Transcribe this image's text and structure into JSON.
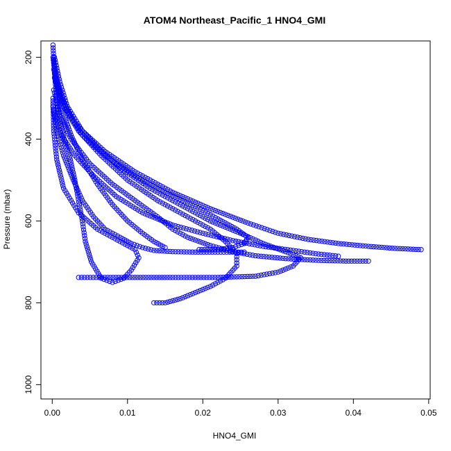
{
  "chart_data": {
    "type": "scatter",
    "title": "ATOM4 Northeast_Pacific_1 HNO4_GMI",
    "xlabel": "HNO4_GMI",
    "ylabel": "Pressure (mbar)",
    "xlim": [
      -0.0015,
      0.0502
    ],
    "ylim": [
      1035,
      160
    ],
    "y_reversed": true,
    "x_ticks": [
      "0.00",
      "0.01",
      "0.02",
      "0.03",
      "0.04",
      "0.05"
    ],
    "x_tick_values": [
      0.0,
      0.01,
      0.02,
      0.03,
      0.04,
      0.05
    ],
    "y_ticks": [
      "200",
      "400",
      "600",
      "800",
      "1000"
    ],
    "y_tick_values": [
      200,
      400,
      600,
      800,
      1000
    ],
    "grid": false,
    "legend": "none",
    "marker": "open-circle",
    "color": "#0000ff",
    "series": [
      {
        "values": [
          [
            0.0001,
            170
          ],
          [
            0.0003,
            240
          ],
          [
            0.0006,
            300
          ],
          [
            0.001,
            350
          ],
          [
            0.0016,
            400
          ],
          [
            0.0024,
            450
          ],
          [
            0.003,
            500
          ],
          [
            0.0036,
            560
          ],
          [
            0.004,
            600
          ],
          [
            0.0044,
            650
          ],
          [
            0.0052,
            700
          ],
          [
            0.0065,
            740
          ],
          [
            0.008,
            750
          ],
          [
            0.0095,
            740
          ],
          [
            0.0105,
            720
          ],
          [
            0.0115,
            690
          ],
          [
            0.011,
            670
          ],
          [
            0.009,
            650
          ],
          [
            0.006,
            620
          ],
          [
            0.0035,
            580
          ],
          [
            0.0015,
            520
          ],
          [
            0.0006,
            450
          ],
          [
            0.0002,
            380
          ],
          [
            0.0001,
            300
          ]
        ]
      },
      {
        "values": [
          [
            0.0003,
            200
          ],
          [
            0.001,
            260
          ],
          [
            0.002,
            320
          ],
          [
            0.004,
            380
          ],
          [
            0.007,
            430
          ],
          [
            0.011,
            480
          ],
          [
            0.016,
            530
          ],
          [
            0.021,
            570
          ],
          [
            0.026,
            605
          ],
          [
            0.03,
            630
          ],
          [
            0.034,
            645
          ],
          [
            0.038,
            655
          ],
          [
            0.042,
            662
          ],
          [
            0.0455,
            667
          ],
          [
            0.049,
            670
          ]
        ]
      },
      {
        "values": [
          [
            0.0002,
            210
          ],
          [
            0.0008,
            270
          ],
          [
            0.002,
            330
          ],
          [
            0.004,
            390
          ],
          [
            0.007,
            440
          ],
          [
            0.011,
            490
          ],
          [
            0.015,
            530
          ],
          [
            0.019,
            565
          ],
          [
            0.022,
            595
          ],
          [
            0.0245,
            620
          ],
          [
            0.026,
            640
          ],
          [
            0.0255,
            655
          ],
          [
            0.024,
            665
          ],
          [
            0.022,
            670
          ],
          [
            0.0195,
            670
          ]
        ]
      },
      {
        "values": [
          [
            0.0002,
            230
          ],
          [
            0.0012,
            300
          ],
          [
            0.003,
            360
          ],
          [
            0.006,
            420
          ],
          [
            0.009,
            470
          ],
          [
            0.013,
            520
          ],
          [
            0.017,
            560
          ],
          [
            0.021,
            600
          ],
          [
            0.025,
            630
          ],
          [
            0.028,
            655
          ],
          [
            0.031,
            675
          ],
          [
            0.033,
            690
          ],
          [
            0.032,
            710
          ],
          [
            0.03,
            725
          ],
          [
            0.027,
            735
          ],
          [
            0.022,
            738
          ],
          [
            0.016,
            738
          ],
          [
            0.011,
            738
          ],
          [
            0.007,
            738
          ],
          [
            0.0035,
            738
          ]
        ]
      },
      {
        "values": [
          [
            0.0003,
            250
          ],
          [
            0.0015,
            320
          ],
          [
            0.0035,
            380
          ],
          [
            0.0065,
            440
          ],
          [
            0.01,
            500
          ],
          [
            0.014,
            550
          ],
          [
            0.018,
            590
          ],
          [
            0.021,
            620
          ],
          [
            0.023,
            650
          ],
          [
            0.0245,
            680
          ],
          [
            0.0245,
            710
          ],
          [
            0.023,
            740
          ],
          [
            0.021,
            760
          ],
          [
            0.019,
            775
          ],
          [
            0.017,
            790
          ],
          [
            0.015,
            800
          ],
          [
            0.0135,
            800
          ]
        ]
      },
      {
        "values": [
          [
            0.0001,
            200
          ],
          [
            0.0005,
            260
          ],
          [
            0.0012,
            320
          ],
          [
            0.0025,
            390
          ],
          [
            0.004,
            450
          ],
          [
            0.006,
            510
          ],
          [
            0.008,
            560
          ],
          [
            0.01,
            600
          ],
          [
            0.012,
            630
          ],
          [
            0.0135,
            650
          ],
          [
            0.015,
            665
          ]
        ]
      },
      {
        "values": [
          [
            0.0002,
            280
          ],
          [
            0.001,
            340
          ],
          [
            0.0025,
            400
          ],
          [
            0.005,
            460
          ],
          [
            0.008,
            510
          ],
          [
            0.011,
            550
          ],
          [
            0.014,
            590
          ],
          [
            0.016,
            620
          ],
          [
            0.018,
            640
          ],
          [
            0.021,
            660
          ],
          [
            0.024,
            675
          ],
          [
            0.027,
            685
          ],
          [
            0.031,
            692
          ],
          [
            0.035,
            696
          ],
          [
            0.039,
            698
          ],
          [
            0.042,
            698
          ]
        ]
      },
      {
        "values": [
          [
            0.0002,
            330
          ],
          [
            0.0012,
            390
          ],
          [
            0.003,
            440
          ],
          [
            0.0055,
            490
          ],
          [
            0.0085,
            540
          ],
          [
            0.012,
            580
          ],
          [
            0.016,
            610
          ],
          [
            0.02,
            630
          ],
          [
            0.024,
            648
          ],
          [
            0.028,
            662
          ],
          [
            0.032,
            672
          ],
          [
            0.035,
            680
          ],
          [
            0.038,
            686
          ]
        ]
      },
      {
        "values": [
          [
            0.0001,
            320
          ],
          [
            0.0006,
            380
          ],
          [
            0.0015,
            440
          ],
          [
            0.0028,
            500
          ],
          [
            0.004,
            550
          ],
          [
            0.0055,
            590
          ],
          [
            0.007,
            620
          ],
          [
            0.009,
            640
          ],
          [
            0.0105,
            655
          ],
          [
            0.012,
            665
          ],
          [
            0.0135,
            672
          ],
          [
            0.016,
            675
          ],
          [
            0.019,
            676
          ],
          [
            0.022,
            676
          ],
          [
            0.0255,
            676
          ]
        ]
      }
    ]
  }
}
